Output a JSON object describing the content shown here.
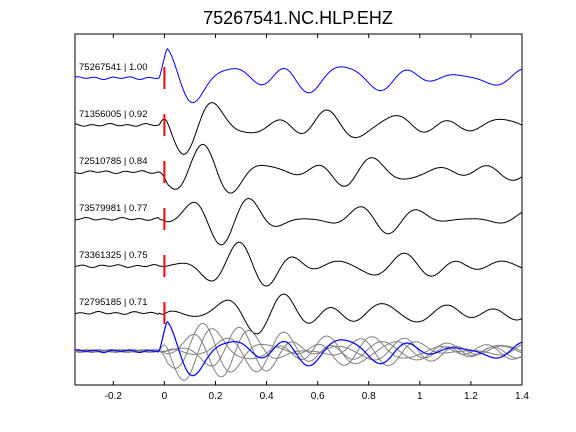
{
  "chart_data": {
    "type": "line",
    "title": "75267541.NC.HLP.EHZ",
    "xlabel": "",
    "ylabel": "",
    "xlim": [
      -0.35,
      1.4
    ],
    "xticks": [
      -0.2,
      0,
      0.2,
      0.4,
      0.6,
      0.8,
      1,
      1.2,
      1.4
    ],
    "xtick_labels": [
      "-0.2",
      "0",
      "0.2",
      "0.4",
      "0.6",
      "0.8",
      "1",
      "1.2",
      "1.4"
    ],
    "grid": false,
    "pick_time": 0,
    "traces": [
      {
        "label": "75267541 | 1.00",
        "color": "#0000ff",
        "seed": 1
      },
      {
        "label": "71356005 | 0.92",
        "color": "#000000",
        "seed": 2
      },
      {
        "label": "72510785 | 0.84",
        "color": "#000000",
        "seed": 3
      },
      {
        "label": "73579981 | 0.77",
        "color": "#000000",
        "seed": 4
      },
      {
        "label": "73361325 | 0.75",
        "color": "#000000",
        "seed": 5
      },
      {
        "label": "72795185 | 0.71",
        "color": "#000000",
        "seed": 6
      }
    ],
    "stack": {
      "reference_color": "#0000ff",
      "overlay_color": "#808080"
    },
    "colors": {
      "pick_marker": "#ff0000",
      "axes": "#000000"
    }
  }
}
